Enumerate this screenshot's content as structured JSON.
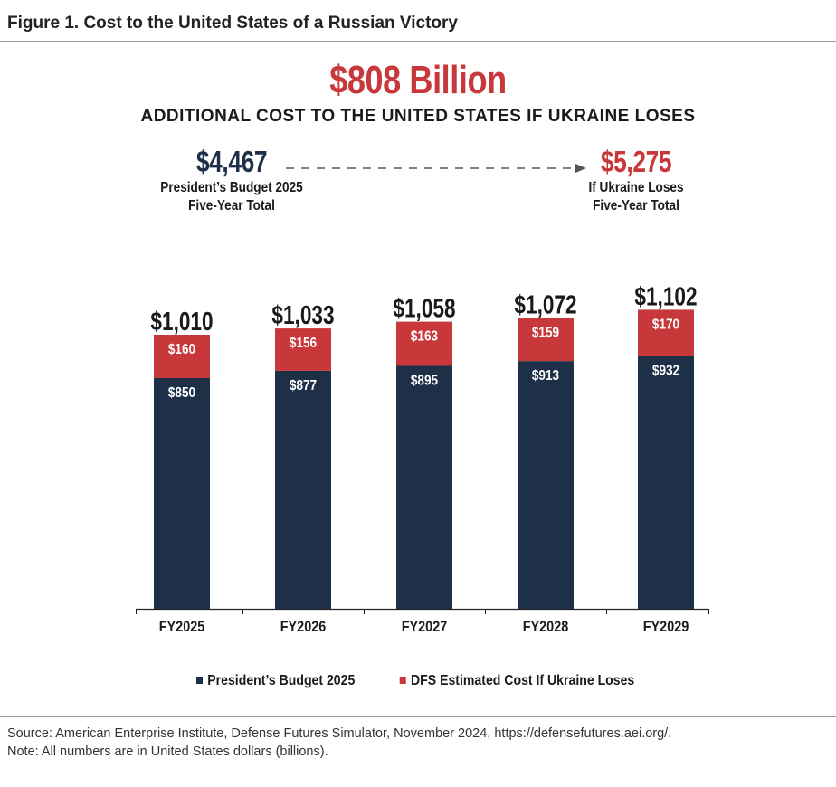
{
  "figure_title": "Figure 1. Cost to the United States of a Russian Victory",
  "headline": "$808 Billion",
  "subheadline": "ADDITIONAL COST TO THE UNITED STATES IF UKRAINE LOSES",
  "left_total": {
    "amount": "$4,467",
    "label_line1": "President’s Budget 2025",
    "label_line2": "Five-Year Total"
  },
  "right_total": {
    "amount": "$5,275",
    "label_line1": "If Ukraine Loses",
    "label_line2": "Five-Year Total"
  },
  "colors": {
    "base": "#1e3048",
    "added": "#c8373a",
    "accent": "#c8373a"
  },
  "chart_data": {
    "type": "bar",
    "stacked": true,
    "title": "",
    "xlabel": "",
    "ylabel": "",
    "ylim": [
      0,
      1200
    ],
    "grid": false,
    "legend_position": "bottom",
    "categories": [
      "FY2025",
      "FY2026",
      "FY2027",
      "FY2028",
      "FY2029"
    ],
    "series": [
      {
        "name": "President’s Budget 2025",
        "values": [
          850,
          877,
          895,
          913,
          932
        ],
        "labels": [
          "$850",
          "$877",
          "$895",
          "$913",
          "$932"
        ]
      },
      {
        "name": "DFS Estimated Cost If Ukraine Loses",
        "values": [
          160,
          156,
          163,
          159,
          170
        ],
        "labels": [
          "$160",
          "$156",
          "$163",
          "$159",
          "$170"
        ]
      }
    ],
    "totals": [
      1010,
      1033,
      1058,
      1072,
      1102
    ],
    "total_labels": [
      "$1,010",
      "$1,033",
      "$1,058",
      "$1,072",
      "$1,102"
    ]
  },
  "legend": {
    "items": [
      {
        "label": "President’s Budget 2025"
      },
      {
        "label": "DFS Estimated Cost If Ukraine Loses"
      }
    ]
  },
  "source_line": "Source: American Enterprise Institute, Defense Futures Simulator, November 2024, https://defensefutures.aei.org/.",
  "note_line": "Note: All numbers are in United States dollars (billions)."
}
